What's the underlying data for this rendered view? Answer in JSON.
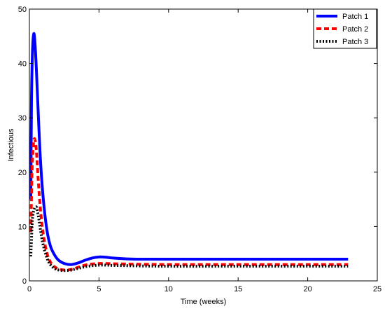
{
  "chart_data": {
    "type": "line",
    "xlabel": "Time (weeks)",
    "ylabel": "Infectious",
    "xlim": [
      0,
      25
    ],
    "ylim": [
      0,
      50
    ],
    "xticks": [
      0,
      5,
      10,
      15,
      20,
      25
    ],
    "yticks": [
      0,
      10,
      20,
      30,
      40,
      50
    ],
    "grid": false,
    "legend": "top-right",
    "series": [
      {
        "name": "Patch 1",
        "color": "#0000ff",
        "style": "solid",
        "x": [
          0.1,
          0.15,
          0.22,
          0.3,
          0.38,
          0.5,
          0.65,
          0.8,
          1.0,
          1.25,
          1.5,
          1.8,
          2.1,
          2.5,
          3.0,
          3.5,
          4.0,
          4.5,
          5.0,
          5.5,
          6.0,
          7.0,
          8.0,
          10.0,
          15.0,
          20.0,
          22.9
        ],
        "values": [
          15,
          33,
          42,
          45.3,
          44.5,
          39,
          30,
          22,
          15,
          9.5,
          6.5,
          4.8,
          3.8,
          3.2,
          3.0,
          3.3,
          3.8,
          4.2,
          4.4,
          4.35,
          4.2,
          4.05,
          4.0,
          4.0,
          4.0,
          4.0,
          4.0
        ]
      },
      {
        "name": "Patch 2",
        "color": "#ff0000",
        "style": "dashed",
        "x": [
          0.1,
          0.2,
          0.3,
          0.4,
          0.5,
          0.65,
          0.8,
          1.0,
          1.25,
          1.5,
          1.8,
          2.1,
          2.5,
          3.0,
          3.5,
          4.0,
          4.5,
          5.0,
          5.5,
          6.0,
          7.0,
          8.0,
          10.0,
          15.0,
          20.0,
          22.9
        ],
        "values": [
          9,
          21,
          25.5,
          26,
          24,
          18,
          13,
          8.5,
          5.2,
          3.5,
          2.6,
          2.2,
          2.0,
          2.1,
          2.5,
          2.9,
          3.1,
          3.2,
          3.2,
          3.15,
          3.1,
          3.05,
          3.0,
          3.0,
          3.0,
          3.0
        ]
      },
      {
        "name": "Patch 3",
        "color": "#000000",
        "style": "dotted",
        "x": [
          0.1,
          0.2,
          0.3,
          0.45,
          0.55,
          0.7,
          0.85,
          1.0,
          1.25,
          1.5,
          1.8,
          2.1,
          2.5,
          3.0,
          3.5,
          4.0,
          4.5,
          5.0,
          5.5,
          6.0,
          7.0,
          8.0,
          10.0,
          15.0,
          20.0,
          22.9
        ],
        "values": [
          4.5,
          10.5,
          12.8,
          13.6,
          13.2,
          11,
          8.5,
          6.5,
          4.3,
          3.0,
          2.3,
          2.0,
          1.9,
          2.0,
          2.3,
          2.6,
          2.8,
          2.9,
          2.9,
          2.85,
          2.8,
          2.75,
          2.7,
          2.7,
          2.7,
          2.7
        ]
      }
    ]
  }
}
